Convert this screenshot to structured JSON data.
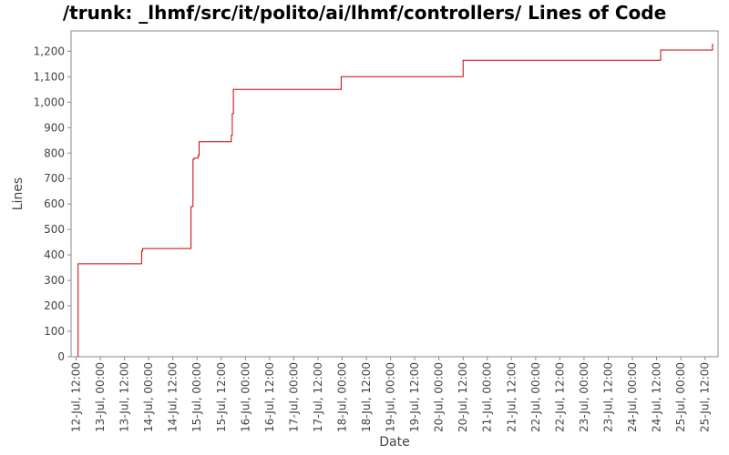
{
  "chart_data": {
    "type": "line",
    "title": "/trunk: _lhmf/src/it/polito/ai/lhmf/controllers/ Lines of Code",
    "xlabel": "Date",
    "ylabel": "Lines",
    "ylim": [
      0,
      1280
    ],
    "yticks": [
      0,
      100,
      200,
      300,
      400,
      500,
      600,
      700,
      800,
      900,
      1000,
      1100,
      1200
    ],
    "ytick_labels": [
      "0",
      "100",
      "200",
      "300",
      "400",
      "500",
      "600",
      "700",
      "800",
      "900",
      "1,000",
      "1,100",
      "1,200"
    ],
    "xlim": [
      "2012-07-12 09:30",
      "2012-07-25 18:30"
    ],
    "xticks": [
      {
        "t": "2012-07-12 12:00",
        "label": "12-Jul, 12:00"
      },
      {
        "t": "2012-07-13 00:00",
        "label": "13-Jul, 00:00"
      },
      {
        "t": "2012-07-13 12:00",
        "label": "13-Jul, 12:00"
      },
      {
        "t": "2012-07-14 00:00",
        "label": "14-Jul, 00:00"
      },
      {
        "t": "2012-07-14 12:00",
        "label": "14-Jul, 12:00"
      },
      {
        "t": "2012-07-15 00:00",
        "label": "15-Jul, 00:00"
      },
      {
        "t": "2012-07-15 12:00",
        "label": "15-Jul, 12:00"
      },
      {
        "t": "2012-07-16 00:00",
        "label": "16-Jul, 00:00"
      },
      {
        "t": "2012-07-16 12:00",
        "label": "16-Jul, 12:00"
      },
      {
        "t": "2012-07-17 00:00",
        "label": "17-Jul, 00:00"
      },
      {
        "t": "2012-07-17 12:00",
        "label": "17-Jul, 12:00"
      },
      {
        "t": "2012-07-18 00:00",
        "label": "18-Jul, 00:00"
      },
      {
        "t": "2012-07-18 12:00",
        "label": "18-Jul, 12:00"
      },
      {
        "t": "2012-07-19 00:00",
        "label": "19-Jul, 00:00"
      },
      {
        "t": "2012-07-19 12:00",
        "label": "19-Jul, 12:00"
      },
      {
        "t": "2012-07-20 00:00",
        "label": "20-Jul, 00:00"
      },
      {
        "t": "2012-07-20 12:00",
        "label": "20-Jul, 12:00"
      },
      {
        "t": "2012-07-21 00:00",
        "label": "21-Jul, 00:00"
      },
      {
        "t": "2012-07-21 12:00",
        "label": "21-Jul, 12:00"
      },
      {
        "t": "2012-07-22 00:00",
        "label": "22-Jul, 00:00"
      },
      {
        "t": "2012-07-22 12:00",
        "label": "22-Jul, 12:00"
      },
      {
        "t": "2012-07-23 00:00",
        "label": "23-Jul, 00:00"
      },
      {
        "t": "2012-07-23 12:00",
        "label": "23-Jul, 12:00"
      },
      {
        "t": "2012-07-24 00:00",
        "label": "24-Jul, 00:00"
      },
      {
        "t": "2012-07-24 12:00",
        "label": "24-Jul, 12:00"
      },
      {
        "t": "2012-07-25 00:00",
        "label": "25-Jul, 00:00"
      },
      {
        "t": "2012-07-25 12:00",
        "label": "25-Jul, 12:00"
      }
    ],
    "step": true,
    "grid": false,
    "colors": {
      "line": "#cc0000",
      "axis": "#888888",
      "tick_text": "#444444"
    },
    "series": [
      {
        "x": [
          "2012-07-12 13:00",
          "2012-07-12 13:00",
          "2012-07-13 20:30",
          "2012-07-13 21:00",
          "2012-07-14 21:00",
          "2012-07-14 22:00",
          "2012-07-14 22:30",
          "2012-07-14 23:30",
          "2012-07-15 00:30",
          "2012-07-15 01:00",
          "2012-07-15 17:00",
          "2012-07-15 17:30",
          "2012-07-15 18:00",
          "2012-07-17 23:30",
          "2012-07-20 12:00",
          "2012-07-24 14:00",
          "2012-07-25 15:30",
          "2012-07-25 15:45"
        ],
        "y": [
          0,
          365,
          415,
          425,
          590,
          775,
          780,
          780,
          790,
          845,
          870,
          955,
          1050,
          1100,
          1165,
          1205,
          1205,
          1230
        ]
      }
    ]
  }
}
